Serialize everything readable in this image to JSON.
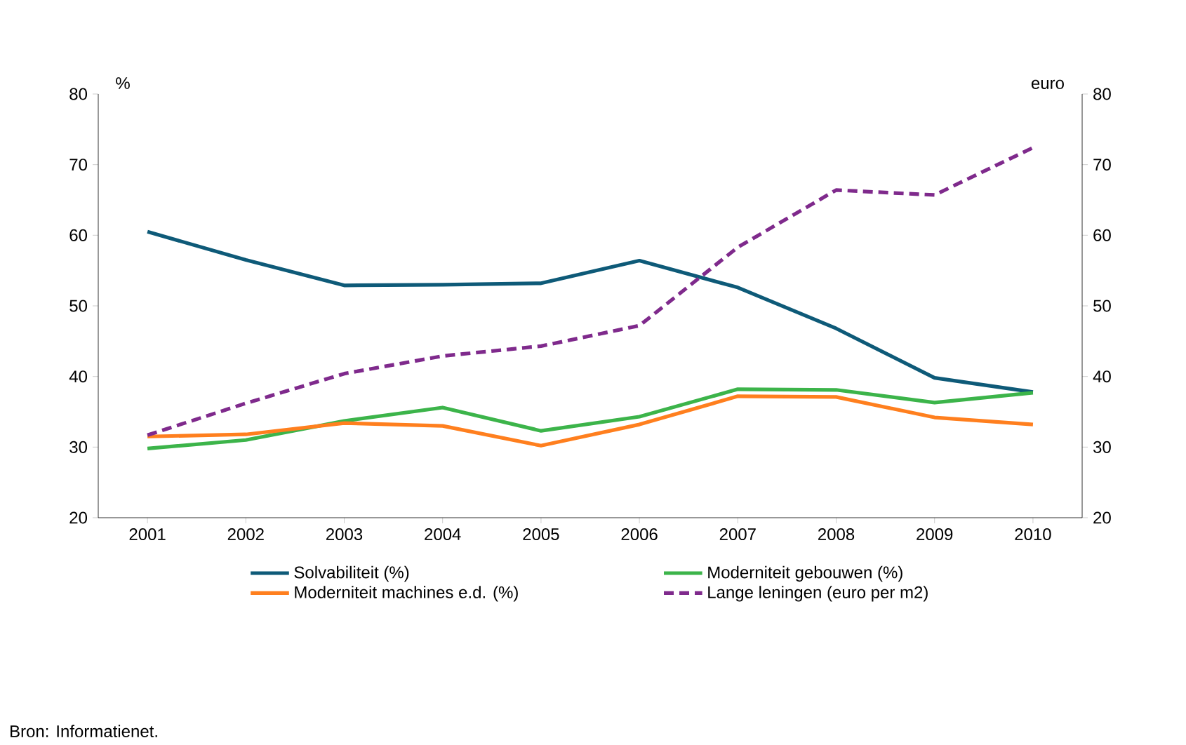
{
  "chart_data": {
    "type": "line",
    "ylabel": "%",
    "y2label": "euro",
    "categories": [
      "2001",
      "2002",
      "2003",
      "2004",
      "2005",
      "2006",
      "2007",
      "2008",
      "2009",
      "2010"
    ],
    "series": [
      {
        "name": "Solvabiliteit (%)",
        "color": "#0e5a78",
        "values": [
          60.5,
          56.5,
          52.9,
          53.0,
          53.2,
          56.4,
          52.6,
          46.8,
          39.8,
          37.8
        ]
      },
      {
        "name": "Moderniteit gebouwen (%)",
        "color": "#3cb44a",
        "values": [
          29.8,
          31.0,
          33.7,
          35.6,
          32.3,
          34.3,
          38.2,
          38.1,
          36.3,
          37.7
        ]
      },
      {
        "name": "Moderniteit machines e.d. (%)",
        "color": "#ff7f1e",
        "values": [
          31.5,
          31.8,
          33.4,
          33.0,
          30.2,
          33.2,
          37.2,
          37.1,
          34.2,
          33.2
        ]
      },
      {
        "name": "Lange leningen (euro per m2)",
        "color": "#7f2a8c",
        "axis": "y2",
        "line_style": "dashed",
        "values": [
          31.7,
          36.2,
          40.4,
          42.9,
          44.3,
          47.2,
          58.3,
          66.4,
          65.7,
          72.4
        ]
      }
    ],
    "ylim": [
      20,
      80
    ],
    "yticks": [
      20,
      30,
      40,
      50,
      60,
      70,
      80
    ],
    "y2lim": [
      20,
      80
    ],
    "y2ticks": [
      20,
      30,
      40,
      50,
      60,
      70,
      80
    ],
    "legend": "bottom",
    "marker": "none",
    "annotations": [
      "Bron: Informatienet."
    ]
  }
}
